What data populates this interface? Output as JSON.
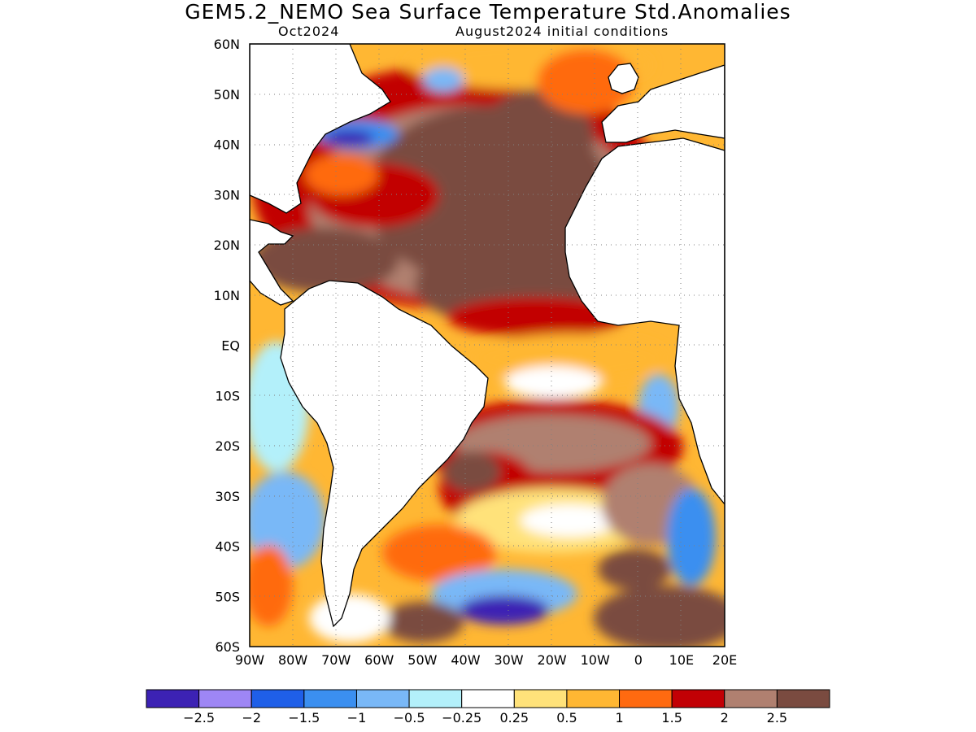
{
  "title": "GEM5.2_NEMO Sea Surface Temperature Std.Anomalies",
  "subtitle_left": "Oct2024",
  "subtitle_right": "August2024 initial conditions",
  "map": {
    "lon_range": [
      -90,
      20
    ],
    "lat_range": [
      -60,
      60
    ],
    "lat_ticks": [
      {
        "value": 60,
        "label": "60N"
      },
      {
        "value": 50,
        "label": "50N"
      },
      {
        "value": 40,
        "label": "40N"
      },
      {
        "value": 30,
        "label": "30N"
      },
      {
        "value": 20,
        "label": "20N"
      },
      {
        "value": 10,
        "label": "10N"
      },
      {
        "value": 0,
        "label": "EQ"
      },
      {
        "value": -10,
        "label": "10S"
      },
      {
        "value": -20,
        "label": "20S"
      },
      {
        "value": -30,
        "label": "30S"
      },
      {
        "value": -40,
        "label": "40S"
      },
      {
        "value": -50,
        "label": "50S"
      },
      {
        "value": -60,
        "label": "60S"
      }
    ],
    "lon_ticks": [
      {
        "value": -90,
        "label": "90W"
      },
      {
        "value": -80,
        "label": "80W"
      },
      {
        "value": -70,
        "label": "70W"
      },
      {
        "value": -60,
        "label": "60W"
      },
      {
        "value": -50,
        "label": "50W"
      },
      {
        "value": -40,
        "label": "40W"
      },
      {
        "value": -30,
        "label": "30W"
      },
      {
        "value": -20,
        "label": "20W"
      },
      {
        "value": -10,
        "label": "10W"
      },
      {
        "value": 0,
        "label": "0"
      },
      {
        "value": 10,
        "label": "10E"
      },
      {
        "value": 20,
        "label": "20E"
      }
    ],
    "grid": "dotted"
  },
  "legend": {
    "colors": [
      "#3c22b4",
      "#9e86f5",
      "#1f5fe8",
      "#3b8ff0",
      "#79b8f7",
      "#b3f0fa",
      "#ffffff",
      "#ffe27a",
      "#ffb733",
      "#ff6a10",
      "#c20005",
      "#b08070",
      "#7a4b40"
    ],
    "labels": [
      "−2.5",
      "−2",
      "−1.5",
      "−1",
      "−0.5",
      "−0.25",
      "0.25",
      "0.5",
      "1",
      "1.5",
      "2",
      "2.5"
    ]
  },
  "colors": {
    "land": "#ffffff",
    "coast": "#000000"
  }
}
